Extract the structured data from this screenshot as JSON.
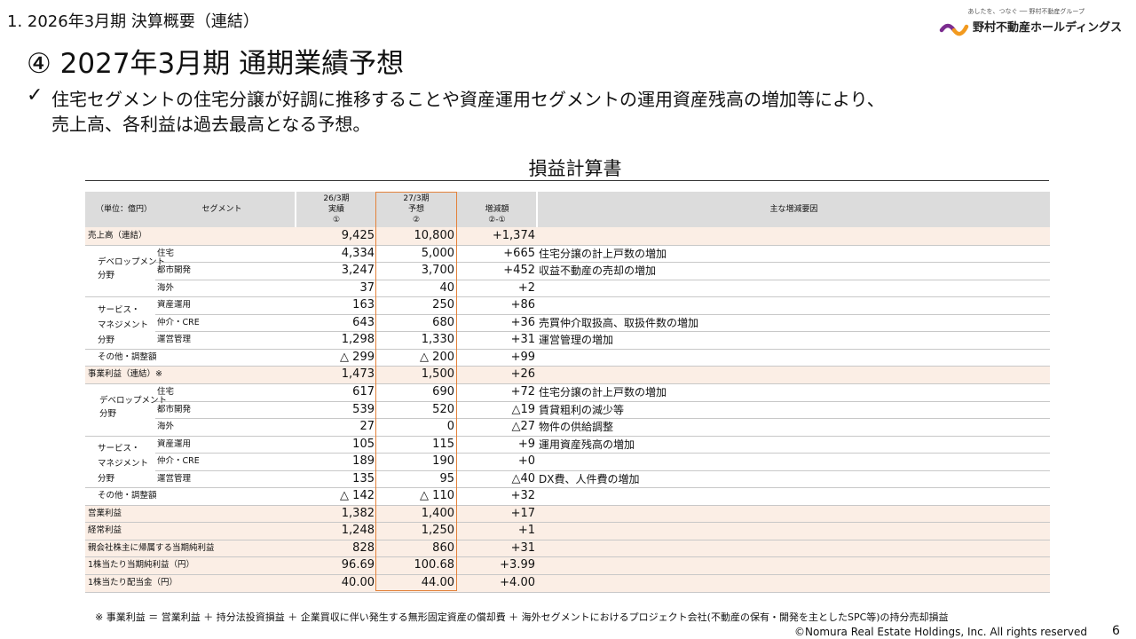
{
  "header": {
    "section": "1. 2026年3月期 決算概要（連結）",
    "title": "④ 2027年3月期 通期業績予想",
    "check": "✓",
    "bullet_line1": "住宅セグメントの住宅分譲が好調に推移することや資産運用セグメントの運用資産残高の増加等により、",
    "bullet_line2": "売上高、各利益は過去最高となる予想。"
  },
  "logo": {
    "tagline": "あしたを、つなぐ ── 野村不動産グループ",
    "name": "野村不動産ホールディングス",
    "colors": [
      "#7b2c8f",
      "#f29a1f"
    ]
  },
  "table": {
    "title": "損益計算書",
    "head": {
      "unit": "（単位：億円）",
      "segment": "セグメント",
      "col1": [
        "26/3期",
        "実績",
        "①"
      ],
      "col2": [
        "27/3期",
        "予想",
        "②"
      ],
      "col3": [
        "増減額",
        "②-①"
      ],
      "reason": "主な増減要因"
    },
    "group_labels": {
      "dev": [
        "デベロップメント",
        "分野"
      ],
      "svc": [
        "サービス・",
        "マネジメント",
        "分野"
      ]
    },
    "rows": [
      {
        "l1": "売上高（連結）",
        "l2": "",
        "a": "9,425",
        "b": "10,800",
        "d": "+1,374",
        "r": "",
        "shade": true
      },
      {
        "l1": "",
        "l2": "住宅",
        "a": "4,334",
        "b": "5,000",
        "d": "+665",
        "r": "住宅分譲の計上戸数の増加",
        "shade": false
      },
      {
        "l1": "",
        "l2": "都市開発",
        "a": "3,247",
        "b": "3,700",
        "d": "+452",
        "r": "収益不動産の売却の増加",
        "shade": false
      },
      {
        "l1": "",
        "l2": "海外",
        "a": "37",
        "b": "40",
        "d": "+2",
        "r": "",
        "shade": false
      },
      {
        "l1": "",
        "l2": "資産運用",
        "a": "163",
        "b": "250",
        "d": "+86",
        "r": "",
        "shade": false
      },
      {
        "l1": "",
        "l2": "仲介・CRE",
        "a": "643",
        "b": "680",
        "d": "+36",
        "r": "売買仲介取扱高、取扱件数の増加",
        "shade": false
      },
      {
        "l1": "",
        "l2": "運営管理",
        "a": "1,298",
        "b": "1,330",
        "d": "+31",
        "r": "運営管理の増加",
        "shade": false
      },
      {
        "l1": "その他・調整額",
        "l2": "",
        "a": "△ 299",
        "b": "△ 200",
        "d": "+99",
        "r": "",
        "shade": false
      },
      {
        "l1": "事業利益（連結）※",
        "l2": "",
        "a": "1,473",
        "b": "1,500",
        "d": "+26",
        "r": "",
        "shade": true
      },
      {
        "l1": "",
        "l2": "住宅",
        "a": "617",
        "b": "690",
        "d": "+72",
        "r": "住宅分譲の計上戸数の増加",
        "shade": false
      },
      {
        "l1": "",
        "l2": "都市開発",
        "a": "539",
        "b": "520",
        "d": "△19",
        "r": "賃貸粗利の減少等",
        "shade": false
      },
      {
        "l1": "",
        "l2": "海外",
        "a": "27",
        "b": "0",
        "d": "△27",
        "r": "物件の供給調整",
        "shade": false
      },
      {
        "l1": "",
        "l2": "資産運用",
        "a": "105",
        "b": "115",
        "d": "+9",
        "r": "運用資産残高の増加",
        "shade": false
      },
      {
        "l1": "",
        "l2": "仲介・CRE",
        "a": "189",
        "b": "190",
        "d": "+0",
        "r": "",
        "shade": false
      },
      {
        "l1": "",
        "l2": "運営管理",
        "a": "135",
        "b": "95",
        "d": "△40",
        "r": "DX費、人件費の増加",
        "shade": false
      },
      {
        "l1": "その他・調整額",
        "l2": "",
        "a": "△ 142",
        "b": "△ 110",
        "d": "+32",
        "r": "",
        "shade": false
      },
      {
        "l1": "営業利益",
        "l2": "",
        "a": "1,382",
        "b": "1,400",
        "d": "+17",
        "r": "",
        "shade": true
      },
      {
        "l1": "経常利益",
        "l2": "",
        "a": "1,248",
        "b": "1,250",
        "d": "+1",
        "r": "",
        "shade": true
      },
      {
        "l1": "親会社株主に帰属する当期純利益",
        "l2": "",
        "a": "828",
        "b": "860",
        "d": "+31",
        "r": "",
        "shade": true
      },
      {
        "l1": "1株当たり当期純利益（円）",
        "l2": "",
        "a": "96.69",
        "b": "100.68",
        "d": "+3.99",
        "r": "",
        "shade": true
      },
      {
        "l1": "1株当たり配当金（円）",
        "l2": "",
        "a": "40.00",
        "b": "44.00",
        "d": "+4.00",
        "r": "",
        "shade": true
      }
    ]
  },
  "footnote": "※ 事業利益 ＝ 営業利益 ＋ 持分法投資損益 ＋ 企業買収に伴い発生する無形固定資産の償却費 ＋ 海外セグメントにおけるプロジェクト会社(不動産の保有・開発を主としたSPC等)の持分売却損益",
  "copyright": "©Nomura Real Estate Holdings, Inc. All rights reserved",
  "page_number": "6",
  "colors": {
    "forecast_border": "#e3823b",
    "shade": "#fbeee5",
    "header_bg": "#dcdcdc"
  }
}
